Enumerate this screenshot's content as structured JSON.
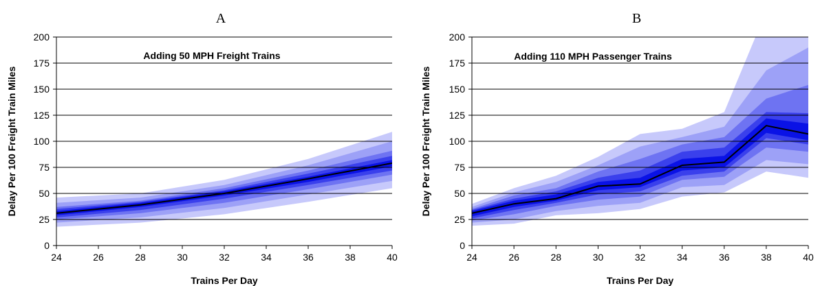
{
  "colors": {
    "band_outer": "#c7c9fb",
    "band_2": "#9da1f7",
    "band_3": "#6e73f2",
    "band_4": "#3a40ec",
    "band_inner": "#0a12e6",
    "median_line": "#000000",
    "gridline": "#000000"
  },
  "chart_data": [
    {
      "type": "area",
      "panel_label": "A",
      "title": "Adding 50 MPH Freight Trains",
      "xlabel": "Trains Per Day",
      "ylabel": "Delay Per 100 Freight Train Miles",
      "x": [
        24,
        28,
        32,
        36,
        40
      ],
      "xlim": [
        24,
        40
      ],
      "ylim": [
        0,
        200
      ],
      "xticks": [
        "24",
        "26",
        "28",
        "30",
        "32",
        "34",
        "36",
        "38",
        "40"
      ],
      "yticks": [
        "0",
        "25",
        "50",
        "75",
        "100",
        "125",
        "150",
        "175",
        "200"
      ],
      "grid": "horizontal",
      "median": [
        31,
        39,
        50,
        64,
        79
      ],
      "bands": [
        {
          "lower": [
            18,
            22,
            30,
            42,
            55
          ],
          "upper": [
            46,
            50,
            63,
            83,
            109
          ]
        },
        {
          "lower": [
            22,
            27,
            36,
            49,
            62
          ],
          "upper": [
            41,
            46,
            58,
            77,
            100
          ]
        },
        {
          "lower": [
            25,
            31,
            41,
            54,
            68
          ],
          "upper": [
            37,
            43,
            55,
            72,
            91
          ]
        },
        {
          "lower": [
            27,
            34,
            45,
            58,
            72
          ],
          "upper": [
            35,
            42,
            53,
            69,
            86
          ]
        },
        {
          "lower": [
            29,
            37,
            48,
            61,
            76
          ],
          "upper": [
            33,
            41,
            52,
            66,
            82
          ]
        }
      ]
    },
    {
      "type": "area",
      "panel_label": "B",
      "title": "Adding 110 MPH Passenger Trains",
      "xlabel": "Trains Per Day",
      "ylabel": "Delay Per 100 Freight Train Miles",
      "x": [
        24,
        26,
        28,
        30,
        32,
        34,
        36,
        38,
        40
      ],
      "xlim": [
        24,
        40
      ],
      "ylim": [
        0,
        200
      ],
      "xticks": [
        "24",
        "26",
        "28",
        "30",
        "32",
        "34",
        "36",
        "38",
        "40"
      ],
      "yticks": [
        "0",
        "25",
        "50",
        "75",
        "100",
        "125",
        "150",
        "175",
        "200"
      ],
      "grid": "horizontal",
      "median": [
        31,
        40,
        45,
        57,
        59,
        77,
        80,
        115,
        107
      ],
      "bands": [
        {
          "lower": [
            19,
            21,
            29,
            31,
            35,
            47,
            51,
            71,
            65
          ],
          "upper": [
            40,
            55,
            67,
            85,
            107,
            112,
            128,
            225,
            205
          ]
        },
        {
          "lower": [
            22,
            25,
            33,
            38,
            41,
            56,
            58,
            82,
            78
          ],
          "upper": [
            37,
            51,
            61,
            77,
            95,
            104,
            114,
            168,
            190
          ]
        },
        {
          "lower": [
            24,
            30,
            38,
            44,
            47,
            63,
            66,
            94,
            90
          ],
          "upper": [
            35,
            48,
            55,
            71,
            83,
            97,
            104,
            141,
            154
          ]
        },
        {
          "lower": [
            26,
            34,
            41,
            49,
            52,
            67,
            71,
            103,
            97
          ],
          "upper": [
            34,
            45,
            52,
            65,
            72,
            90,
            94,
            128,
            127
          ]
        },
        {
          "lower": [
            28,
            37,
            43,
            53,
            56,
            72,
            75,
            108,
            101
          ],
          "upper": [
            33,
            43,
            49,
            61,
            65,
            83,
            86,
            122,
            117
          ]
        }
      ]
    }
  ]
}
